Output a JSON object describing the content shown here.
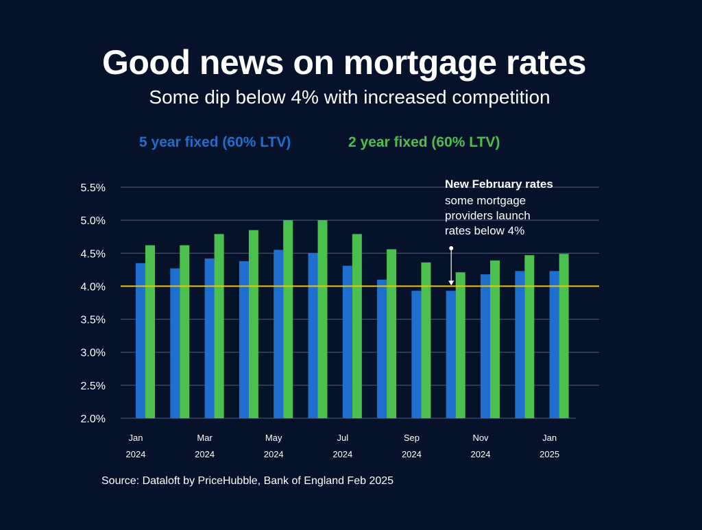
{
  "colors": {
    "background": "#06112a",
    "series_5yr": "#1f6fd1",
    "series_2yr": "#4cc04f",
    "threshold": "#f2c400",
    "grid": "#55607a"
  },
  "chart_data": {
    "type": "bar",
    "title": "Good news on mortgage rates",
    "subtitle": "Some dip below 4% with increased competition",
    "categories": [
      "Jan 2024",
      "Feb 2024",
      "Mar 2024",
      "Apr 2024",
      "May 2024",
      "Jun 2024",
      "Jul 2024",
      "Aug 2024",
      "Sep 2024",
      "Oct 2024",
      "Nov 2024",
      "Dec 2024",
      "Jan 2025"
    ],
    "tick_labels": [
      {
        "index": 0,
        "line1": "Jan",
        "line2": "2024"
      },
      {
        "index": 2,
        "line1": "Mar",
        "line2": "2024"
      },
      {
        "index": 4,
        "line1": "May",
        "line2": "2024"
      },
      {
        "index": 6,
        "line1": "Jul",
        "line2": "2024"
      },
      {
        "index": 8,
        "line1": "Sep",
        "line2": "2024"
      },
      {
        "index": 10,
        "line1": "Nov",
        "line2": "2024"
      },
      {
        "index": 12,
        "line1": "Jan",
        "line2": "2025"
      }
    ],
    "series": [
      {
        "name": "5 year fixed (60% LTV)",
        "values": [
          4.35,
          4.27,
          4.42,
          4.38,
          4.55,
          4.5,
          4.31,
          4.1,
          3.93,
          3.93,
          4.18,
          4.23,
          4.23
        ]
      },
      {
        "name": "2 year fixed (60% LTV)",
        "values": [
          4.62,
          4.62,
          4.79,
          4.85,
          5.0,
          5.0,
          4.79,
          4.56,
          4.36,
          4.21,
          4.39,
          4.47,
          4.49
        ]
      }
    ],
    "ylim": [
      2.0,
      5.5
    ],
    "yticks": [
      2.0,
      2.5,
      3.0,
      3.5,
      4.0,
      4.5,
      5.0,
      5.5
    ],
    "ytick_labels": [
      "2.0%",
      "2.5%",
      "3.0%",
      "3.5%",
      "4.0%",
      "4.5%",
      "5.0%",
      "5.5%"
    ],
    "threshold": 4.0,
    "grid": true,
    "legend_position": "top",
    "annotation": {
      "title": "New February rates",
      "lines": [
        "some mortgage",
        "providers launch",
        "rates below 4%"
      ],
      "target_index": 9,
      "target_value": 4.0
    }
  },
  "source": "Source: Dataloft by PriceHubble, Bank of England Feb 2025"
}
